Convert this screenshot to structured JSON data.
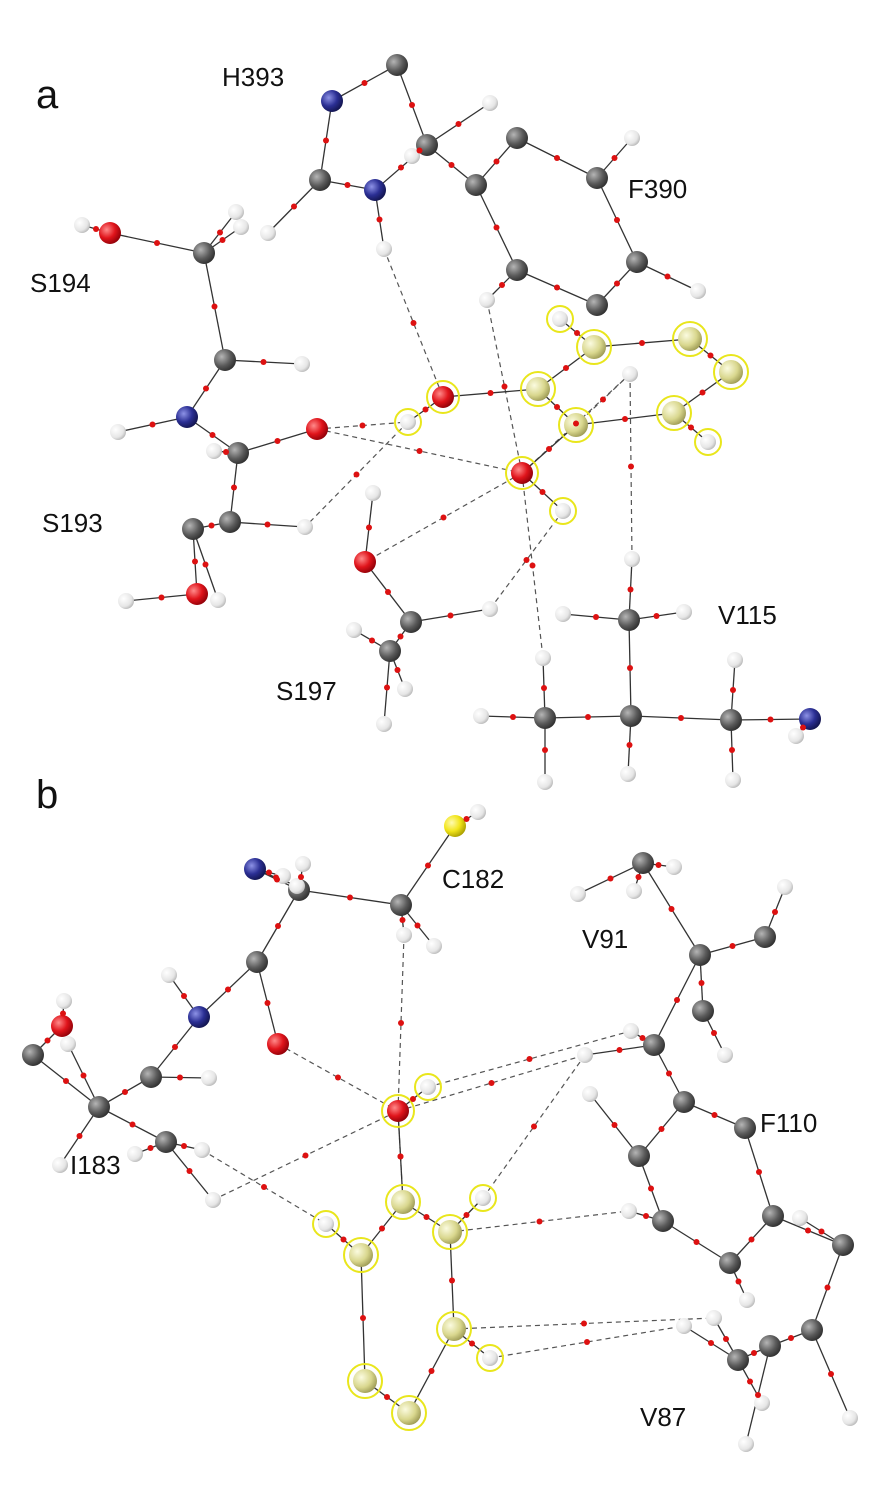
{
  "panels": [
    {
      "letter": "a",
      "residues": [
        "H393",
        "F390",
        "S194",
        "S193",
        "V115",
        "S197"
      ]
    },
    {
      "letter": "b",
      "residues": [
        "C182",
        "V91",
        "F110",
        "I183",
        "V87"
      ]
    }
  ],
  "atom_colors": {
    "carbon": "#5a5a5a",
    "hydrogen": "#eeeeee",
    "oxygen": "#e0141b",
    "nitrogen": "#2b2f94",
    "sulfur": "#f2e51a",
    "ligand": "#d9d78e",
    "ligand_highlight_ring": "#e9e61c",
    "bond_critical_point": "#dd1111"
  }
}
